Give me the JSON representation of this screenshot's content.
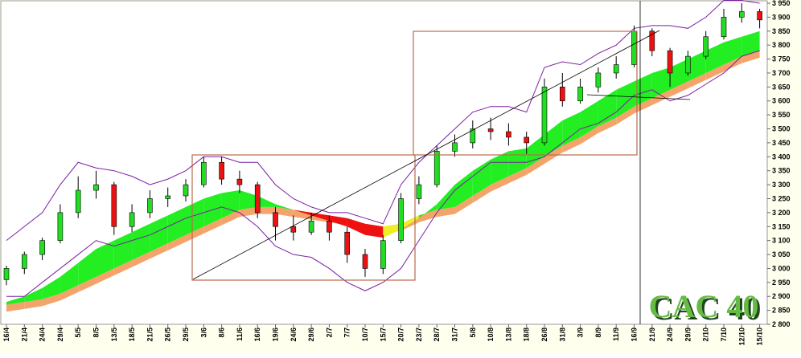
{
  "chart_data": {
    "type": "candlestick",
    "title": "CAC 40",
    "categories": [
      "16/4",
      "21/4",
      "24/4",
      "29/4",
      "5/5",
      "8/5",
      "13/5",
      "18/5",
      "21/5",
      "26/5",
      "29/5",
      "3/6",
      "8/6",
      "11/6",
      "16/6",
      "19/6",
      "24/6",
      "29/6",
      "2/7",
      "7/7",
      "10/7",
      "15/7",
      "20/7",
      "23/7",
      "28/7",
      "31/7",
      "5/8",
      "10/8",
      "13/8",
      "18/8",
      "26/8",
      "31/8",
      "3/9",
      "8/9",
      "11/9",
      "16/9",
      "21/9",
      "24/9",
      "29/9",
      "2/10",
      "7/10",
      "12/10",
      "15/10"
    ],
    "open": [
      2960,
      3000,
      3050,
      3100,
      3200,
      3280,
      3300,
      3150,
      3200,
      3250,
      3260,
      3300,
      3380,
      3320,
      3300,
      3200,
      3150,
      3130,
      3170,
      3130,
      3050,
      3000,
      3100,
      3250,
      3300,
      3420,
      3450,
      3500,
      3490,
      3470,
      3450,
      3650,
      3600,
      3650,
      3700,
      3730,
      3850,
      3780,
      3700,
      3760,
      3830,
      3900,
      3920
    ],
    "high": [
      3010,
      3060,
      3110,
      3230,
      3330,
      3350,
      3310,
      3230,
      3280,
      3290,
      3320,
      3400,
      3400,
      3350,
      3310,
      3220,
      3190,
      3200,
      3190,
      3150,
      3070,
      3120,
      3270,
      3330,
      3440,
      3480,
      3530,
      3540,
      3520,
      3490,
      3680,
      3700,
      3680,
      3720,
      3760,
      3870,
      3860,
      3790,
      3780,
      3850,
      3930,
      3950,
      3930
    ],
    "low": [
      2940,
      2980,
      3030,
      3090,
      3180,
      3250,
      3120,
      3130,
      3180,
      3220,
      3240,
      3290,
      3300,
      3270,
      3180,
      3100,
      3100,
      3120,
      3100,
      3020,
      2970,
      2980,
      3090,
      3230,
      3290,
      3400,
      3430,
      3460,
      3440,
      3410,
      3440,
      3580,
      3590,
      3630,
      3680,
      3720,
      3760,
      3650,
      3690,
      3750,
      3820,
      3880,
      3860
    ],
    "close": [
      3000,
      3050,
      3100,
      3200,
      3280,
      3300,
      3150,
      3200,
      3250,
      3260,
      3300,
      3380,
      3320,
      3300,
      3200,
      3150,
      3130,
      3170,
      3130,
      3050,
      3000,
      3100,
      3250,
      3300,
      3420,
      3450,
      3500,
      3490,
      3470,
      3450,
      3650,
      3600,
      3650,
      3700,
      3730,
      3850,
      3780,
      3700,
      3760,
      3830,
      3900,
      3920,
      3890
    ],
    "ma_fast": [
      2880,
      2900,
      2930,
      2970,
      3020,
      3070,
      3100,
      3130,
      3160,
      3190,
      3220,
      3250,
      3270,
      3280,
      3260,
      3230,
      3210,
      3190,
      3170,
      3150,
      3120,
      3110,
      3140,
      3180,
      3230,
      3300,
      3350,
      3390,
      3420,
      3430,
      3480,
      3530,
      3560,
      3600,
      3640,
      3670,
      3700,
      3720,
      3750,
      3780,
      3810,
      3830,
      3850
    ],
    "ma_slow": [
      2870,
      2880,
      2890,
      2910,
      2940,
      2970,
      3000,
      3030,
      3060,
      3090,
      3120,
      3150,
      3180,
      3210,
      3220,
      3220,
      3210,
      3200,
      3190,
      3180,
      3160,
      3150,
      3160,
      3190,
      3210,
      3220,
      3260,
      3300,
      3330,
      3360,
      3400,
      3440,
      3470,
      3510,
      3540,
      3580,
      3610,
      3640,
      3670,
      3700,
      3730,
      3760,
      3780
    ],
    "ma_slow2": [
      2845,
      2855,
      2865,
      2885,
      2915,
      2945,
      2975,
      3005,
      3035,
      3065,
      3095,
      3125,
      3155,
      3185,
      3195,
      3195,
      3185,
      3175,
      3165,
      3155,
      3135,
      3125,
      3135,
      3165,
      3185,
      3195,
      3235,
      3275,
      3305,
      3335,
      3375,
      3415,
      3445,
      3485,
      3515,
      3555,
      3585,
      3615,
      3645,
      3675,
      3705,
      3735,
      3755
    ],
    "band_upper": [
      3100,
      3150,
      3200,
      3300,
      3380,
      3360,
      3350,
      3330,
      3300,
      3320,
      3350,
      3400,
      3400,
      3380,
      3380,
      3300,
      3250,
      3220,
      3200,
      3200,
      3180,
      3160,
      3300,
      3380,
      3440,
      3500,
      3560,
      3580,
      3580,
      3560,
      3720,
      3740,
      3730,
      3770,
      3800,
      3860,
      3870,
      3870,
      3860,
      3900,
      3960,
      3960,
      3950
    ],
    "band_lower": [
      2900,
      2900,
      2950,
      3000,
      3050,
      3100,
      3080,
      3100,
      3120,
      3150,
      3180,
      3200,
      3220,
      3200,
      3150,
      3080,
      3050,
      3040,
      3000,
      2950,
      2920,
      2950,
      3000,
      3100,
      3200,
      3280,
      3330,
      3380,
      3380,
      3380,
      3400,
      3450,
      3500,
      3520,
      3560,
      3620,
      3640,
      3600,
      3620,
      3660,
      3700,
      3760,
      3780
    ],
    "up_color": "#22dd22",
    "down_color": "#ee1111",
    "band_color": "#7a1fa2",
    "ylim": [
      2800,
      3950
    ],
    "yticks": [
      {
        "value": 2800,
        "label": "2 800"
      },
      {
        "value": 2850,
        "label": "2 850"
      },
      {
        "value": 2900,
        "label": "2 900"
      },
      {
        "value": 2950,
        "label": "2 950"
      },
      {
        "value": 3000,
        "label": "3 000"
      },
      {
        "value": 3050,
        "label": "3 050"
      },
      {
        "value": 3100,
        "label": "3 100"
      },
      {
        "value": 3150,
        "label": "3 150"
      },
      {
        "value": 3200,
        "label": "3 200"
      },
      {
        "value": 3250,
        "label": "3 250"
      },
      {
        "value": 3300,
        "label": "3 300"
      },
      {
        "value": 3350,
        "label": "3 350"
      },
      {
        "value": 3400,
        "label": "3 400"
      },
      {
        "value": 3450,
        "label": "3 450"
      },
      {
        "value": 3500,
        "label": "3 500"
      },
      {
        "value": 3550,
        "label": "3 550"
      },
      {
        "value": 3600,
        "label": "3 600"
      },
      {
        "value": 3650,
        "label": "3 650"
      },
      {
        "value": 3700,
        "label": "3 700"
      },
      {
        "value": 3750,
        "label": "3 750"
      },
      {
        "value": 3800,
        "label": "3 800"
      },
      {
        "value": 3850,
        "label": "3 850"
      },
      {
        "value": 3900,
        "label": "3 900"
      },
      {
        "value": 3950,
        "label": "3 950"
      }
    ]
  }
}
